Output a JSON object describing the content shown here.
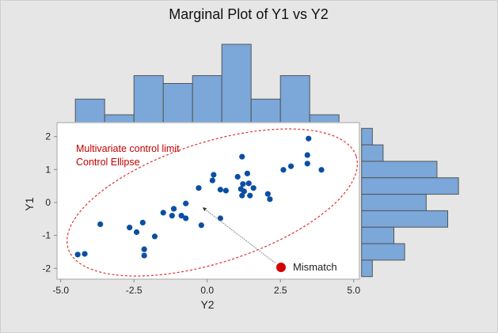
{
  "chart_data": {
    "type": "scatter",
    "title": "Marginal Plot of Y1 vs Y2",
    "xlabel": "Y2",
    "ylabel": "Y1",
    "xlim": [
      -5.0,
      5.0
    ],
    "ylim": [
      -2.4,
      2.4
    ],
    "x_ticks": [
      "-5.0",
      "-2.5",
      "0.0",
      "2.5",
      "5.0"
    ],
    "x_tick_values": [
      -5,
      -2.5,
      0,
      2.5,
      5
    ],
    "y_ticks": [
      "-2",
      "-1",
      "0",
      "1",
      "2"
    ],
    "y_tick_values": [
      -2,
      -1,
      0,
      1,
      2
    ],
    "grid": false,
    "point_color": "#0b4fa3",
    "hist_color": "#7ba7d9",
    "points": [
      [
        3.46,
        1.94
      ],
      [
        3.42,
        1.44
      ],
      [
        3.42,
        1.18
      ],
      [
        3.9,
        0.99
      ],
      [
        2.86,
        1.1
      ],
      [
        2.6,
        0.99
      ],
      [
        1.19,
        1.39
      ],
      [
        1.37,
        0.88
      ],
      [
        1.04,
        0.78
      ],
      [
        1.22,
        0.56
      ],
      [
        1.42,
        0.58
      ],
      [
        1.58,
        0.44
      ],
      [
        1.15,
        0.41
      ],
      [
        1.26,
        0.34
      ],
      [
        1.19,
        0.21
      ],
      [
        1.46,
        0.21
      ],
      [
        2.07,
        0.26
      ],
      [
        2.14,
        0.1
      ],
      [
        0.22,
        0.84
      ],
      [
        0.18,
        0.67
      ],
      [
        0.45,
        0.39
      ],
      [
        0.64,
        0.36
      ],
      [
        -0.29,
        0.44
      ],
      [
        -0.73,
        -0.03
      ],
      [
        -1.14,
        -0.19
      ],
      [
        -1.5,
        -0.31
      ],
      [
        -1.2,
        -0.4
      ],
      [
        -0.88,
        -0.4
      ],
      [
        -0.73,
        -0.48
      ],
      [
        0.45,
        -0.48
      ],
      [
        -0.2,
        -0.69
      ],
      [
        -2.2,
        -0.61
      ],
      [
        -2.65,
        -0.76
      ],
      [
        -2.41,
        -0.9
      ],
      [
        -1.79,
        -1.03
      ],
      [
        -3.65,
        -0.66
      ],
      [
        -2.15,
        -1.42
      ],
      [
        -2.15,
        -1.61
      ],
      [
        -4.18,
        -1.56
      ],
      [
        -4.42,
        -1.58
      ]
    ],
    "outlier": {
      "x": 2.52,
      "y": -1.97,
      "label": "Mismatch",
      "color": "#d40000",
      "arrow_to": [
        -0.14,
        -0.16
      ]
    },
    "ellipse_label_lines": [
      "Multivariate control limit",
      "Control Ellipse"
    ],
    "ellipse_color": "#e03030",
    "top_histogram": {
      "bin_start": -4.5,
      "bin_width": 1.0,
      "counts": [
        3,
        1,
        6,
        5,
        6,
        10,
        3,
        6,
        1
      ]
    },
    "right_histogram": {
      "bin_start": 2.25,
      "bin_width": -0.5,
      "counts": [
        1,
        2,
        7,
        9,
        6,
        8,
        3,
        4,
        1
      ]
    }
  }
}
